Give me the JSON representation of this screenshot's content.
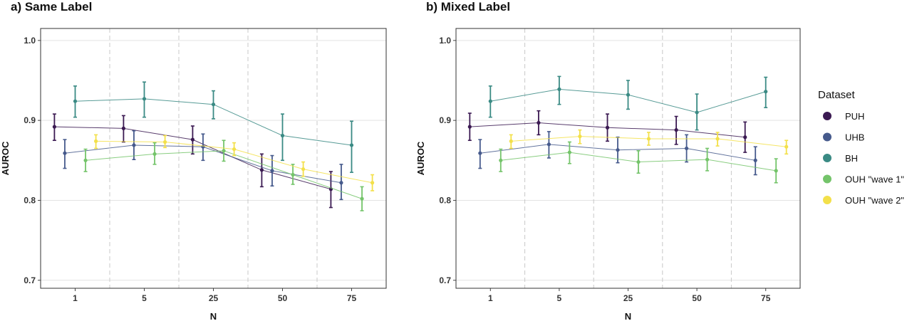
{
  "legend": {
    "title": "Dataset",
    "entries": [
      {
        "name": "PUH",
        "color": "#3b1a52"
      },
      {
        "name": "UHB",
        "color": "#465a8c"
      },
      {
        "name": "BH",
        "color": "#3a8a84"
      },
      {
        "name": "OUH \"wave 1\"",
        "color": "#74c46a"
      },
      {
        "name": "OUH \"wave 2\"",
        "color": "#f3e04a"
      }
    ]
  },
  "chart_data": [
    {
      "type": "line",
      "title": "a) Same Label",
      "xlabel": "N",
      "ylabel": "AUROC",
      "categories": [
        "1",
        "5",
        "25",
        "50",
        "75"
      ],
      "ylim": [
        0.69,
        1.015
      ],
      "yticks": [
        "0.7",
        "0.8",
        "0.9",
        "1.0"
      ],
      "grid": true,
      "series": [
        {
          "name": "PUH",
          "values": [
            0.892,
            0.89,
            0.876,
            0.838,
            0.814
          ],
          "lower": [
            0.875,
            0.873,
            0.858,
            0.817,
            0.791
          ],
          "upper": [
            0.908,
            0.906,
            0.893,
            0.858,
            0.836
          ]
        },
        {
          "name": "UHB",
          "values": [
            0.859,
            0.869,
            0.867,
            0.837,
            0.822
          ],
          "lower": [
            0.84,
            0.851,
            0.85,
            0.818,
            0.801
          ],
          "upper": [
            0.876,
            0.887,
            0.883,
            0.856,
            0.845
          ]
        },
        {
          "name": "BH",
          "values": [
            0.924,
            0.927,
            0.92,
            0.881,
            0.869
          ],
          "lower": [
            0.904,
            0.904,
            0.902,
            0.85,
            0.835
          ],
          "upper": [
            0.943,
            0.948,
            0.937,
            0.908,
            0.899
          ]
        },
        {
          "name": "OUH \"wave 1\"",
          "values": [
            0.85,
            0.858,
            0.862,
            0.832,
            0.802
          ],
          "lower": [
            0.836,
            0.845,
            0.849,
            0.82,
            0.787
          ],
          "upper": [
            0.864,
            0.872,
            0.875,
            0.845,
            0.817
          ]
        },
        {
          "name": "OUH \"wave 2\"",
          "values": [
            0.874,
            0.873,
            0.864,
            0.839,
            0.822
          ],
          "lower": [
            0.865,
            0.866,
            0.856,
            0.83,
            0.812
          ],
          "upper": [
            0.882,
            0.881,
            0.872,
            0.848,
            0.832
          ]
        }
      ]
    },
    {
      "type": "line",
      "title": "b) Mixed Label",
      "xlabel": "N",
      "ylabel": "AUROC",
      "categories": [
        "1",
        "5",
        "25",
        "50",
        "75"
      ],
      "ylim": [
        0.69,
        1.015
      ],
      "yticks": [
        "0.7",
        "0.8",
        "0.9",
        "1.0"
      ],
      "grid": true,
      "series": [
        {
          "name": "PUH",
          "values": [
            0.892,
            0.897,
            0.891,
            0.888,
            0.879
          ],
          "lower": [
            0.875,
            0.882,
            0.874,
            0.87,
            0.86
          ],
          "upper": [
            0.909,
            0.912,
            0.908,
            0.905,
            0.898
          ]
        },
        {
          "name": "UHB",
          "values": [
            0.859,
            0.87,
            0.863,
            0.865,
            0.85
          ],
          "lower": [
            0.84,
            0.853,
            0.847,
            0.848,
            0.832
          ],
          "upper": [
            0.876,
            0.886,
            0.879,
            0.882,
            0.867
          ]
        },
        {
          "name": "BH",
          "values": [
            0.924,
            0.939,
            0.932,
            0.91,
            0.936
          ],
          "lower": [
            0.904,
            0.92,
            0.914,
            0.888,
            0.916
          ],
          "upper": [
            0.943,
            0.955,
            0.95,
            0.933,
            0.954
          ]
        },
        {
          "name": "OUH \"wave 1\"",
          "values": [
            0.85,
            0.86,
            0.848,
            0.851,
            0.837
          ],
          "lower": [
            0.836,
            0.846,
            0.834,
            0.837,
            0.822
          ],
          "upper": [
            0.864,
            0.873,
            0.862,
            0.865,
            0.852
          ]
        },
        {
          "name": "OUH \"wave 2\"",
          "values": [
            0.874,
            0.88,
            0.877,
            0.877,
            0.867
          ],
          "lower": [
            0.865,
            0.871,
            0.869,
            0.868,
            0.858
          ],
          "upper": [
            0.882,
            0.888,
            0.885,
            0.885,
            0.875
          ]
        }
      ]
    }
  ]
}
